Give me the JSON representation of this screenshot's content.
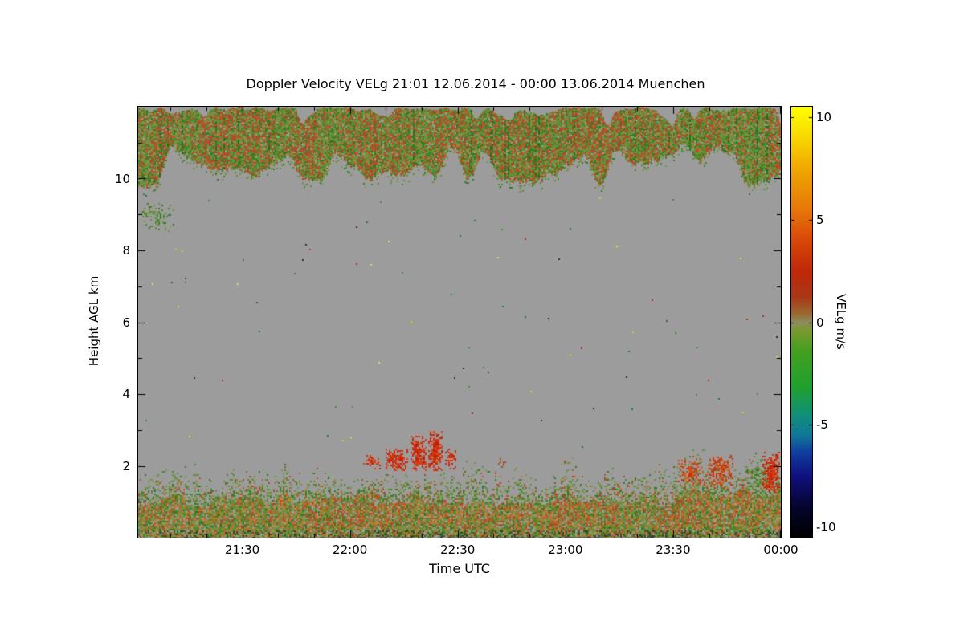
{
  "chart_data": {
    "type": "heatmap",
    "title": "Doppler Velocity VELg   21:01 12.06.2014 - 00:00 13.06.2014 Muenchen",
    "instrument_product": "Doppler Velocity VELg",
    "time_span": "21:01 12.06.2014 - 00:00 13.06.2014",
    "station": "Muenchen",
    "xlabel": "Time UTC",
    "ylabel": "Height AGL km",
    "x_start_label": "21:01",
    "x_end_label": "00:00",
    "x_total_minutes": 179,
    "x_ticks": [
      {
        "label": "21:30",
        "minutes": 29
      },
      {
        "label": "22:00",
        "minutes": 59
      },
      {
        "label": "22:30",
        "minutes": 89
      },
      {
        "label": "23:00",
        "minutes": 119
      },
      {
        "label": "23:30",
        "minutes": 149
      },
      {
        "label": "00:00",
        "minutes": 179
      }
    ],
    "x_minor_tick_every_minutes": 10,
    "y_range_km": [
      0,
      12
    ],
    "y_ticks": [
      2,
      4,
      6,
      8,
      10
    ],
    "y_minor_ticks": [
      1,
      3,
      5,
      7,
      9,
      11
    ],
    "no_data_color": "#9c9c9c",
    "colorbar": {
      "label": "VELg m/s",
      "units": "m/s",
      "range": [
        -10.5,
        10.5
      ],
      "ticks": [
        10,
        5,
        0,
        -5,
        -10
      ],
      "stops": [
        {
          "v": -10.5,
          "c": "#000000"
        },
        {
          "v": -9.0,
          "c": "#05052e"
        },
        {
          "v": -7.5,
          "c": "#101080"
        },
        {
          "v": -6.3,
          "c": "#1040a0"
        },
        {
          "v": -5.5,
          "c": "#107898"
        },
        {
          "v": -4.5,
          "c": "#109078"
        },
        {
          "v": -3.2,
          "c": "#20a030"
        },
        {
          "v": -1.5,
          "c": "#40a020"
        },
        {
          "v": -0.4,
          "c": "#7a9a30"
        },
        {
          "v": 0.0,
          "c": "#8c8c60"
        },
        {
          "v": 0.4,
          "c": "#9a6a30"
        },
        {
          "v": 1.2,
          "c": "#a83818"
        },
        {
          "v": 2.5,
          "c": "#c02808"
        },
        {
          "v": 4.0,
          "c": "#d84808"
        },
        {
          "v": 5.5,
          "c": "#e87808"
        },
        {
          "v": 7.5,
          "c": "#f0a800"
        },
        {
          "v": 9.0,
          "c": "#f8d800"
        },
        {
          "v": 10.5,
          "c": "#ffff00"
        }
      ]
    },
    "features": {
      "description": "Gray background = no signal. Cirrus/cloud layer between ~9.8 and 12 km with mixed green (downward) and red/orange (upward) Doppler velocities. Boundary-layer echoes below ~2.3 km, dense mottled red/orange/green band under ~1.2 km. Isolated colored noise pixels scattered at mid levels. Strong red updraft cells near 22:25 (2-3 km) and 23:35-00:00 (1.3-2.4 km).",
      "palettes": {
        "greens": [
          "#2f7d1e",
          "#478a2c",
          "#5f9038",
          "#6f8f3f",
          "#7f9147"
        ],
        "darkgreens": [
          "#256818",
          "#2f7d1e",
          "#3a7524"
        ],
        "olives": [
          "#8a8a45",
          "#97914c",
          "#7f8a3f"
        ],
        "reds": [
          "#aa4a28",
          "#b5502a",
          "#a05030",
          "#bf5524",
          "#9a5a38"
        ],
        "strongreds": [
          "#cc2810",
          "#d03511",
          "#c02008",
          "#dd4010"
        ],
        "redorange": [
          "#cc3510",
          "#c84f18",
          "#d06018",
          "#b93a12"
        ],
        "oranges": [
          "#c06f2d",
          "#cb7a28",
          "#b96530"
        ],
        "darks": [
          "#3f4f33",
          "#4a5a3a",
          "#35402a"
        ],
        "dots": [
          "#d8c820",
          "#b03020",
          "#3a9030",
          "#203040",
          "#207060",
          "#e0e040"
        ]
      },
      "cloud_band": {
        "top_km": 12.0,
        "base_km_min": 9.75,
        "base_km_max": 10.95,
        "coverage": 0.96
      },
      "boundary_layer": {
        "dense_top_min_km": 0.85,
        "dense_top_max_km": 1.3,
        "sparse_top_min_km": 1.55,
        "sparse_top_max_km": 2.25,
        "right_section_start_frac": 0.83
      },
      "patches": [
        {
          "x0": 0.35,
          "x1": 0.376,
          "h0": 1.95,
          "h1": 2.35,
          "density": 0.55,
          "palette": "strongreds"
        },
        {
          "x0": 0.385,
          "x1": 0.42,
          "h0": 1.9,
          "h1": 2.5,
          "density": 0.7,
          "palette": "strongreds"
        },
        {
          "x0": 0.424,
          "x1": 0.447,
          "h0": 1.9,
          "h1": 2.85,
          "density": 0.75,
          "palette": "strongreds"
        },
        {
          "x0": 0.451,
          "x1": 0.473,
          "h0": 1.9,
          "h1": 3.0,
          "density": 0.8,
          "palette": "strongreds"
        },
        {
          "x0": 0.477,
          "x1": 0.492,
          "h0": 1.9,
          "h1": 2.55,
          "density": 0.6,
          "palette": "strongreds"
        },
        {
          "x0": 0.56,
          "x1": 0.572,
          "h0": 1.95,
          "h1": 2.25,
          "density": 0.45,
          "palette": "reds"
        },
        {
          "x0": 0.84,
          "x1": 0.876,
          "h0": 1.5,
          "h1": 2.25,
          "density": 0.6,
          "palette": "redorange"
        },
        {
          "x0": 0.884,
          "x1": 0.926,
          "h0": 1.4,
          "h1": 2.3,
          "density": 0.55,
          "palette": "redorange"
        },
        {
          "x0": 0.944,
          "x1": 0.982,
          "h0": 1.45,
          "h1": 2.05,
          "density": 0.55,
          "palette": "greens"
        },
        {
          "x0": 0.971,
          "x1": 0.998,
          "h0": 1.3,
          "h1": 2.4,
          "density": 0.85,
          "palette": "strongreds"
        },
        {
          "x0": 0.004,
          "x1": 0.056,
          "h0": 8.55,
          "h1": 9.35,
          "density": 0.3,
          "palette": "greens"
        }
      ],
      "sparse_dots": {
        "count": 80,
        "h_min_km": 2.55,
        "h_max_km": 9.55
      }
    }
  }
}
